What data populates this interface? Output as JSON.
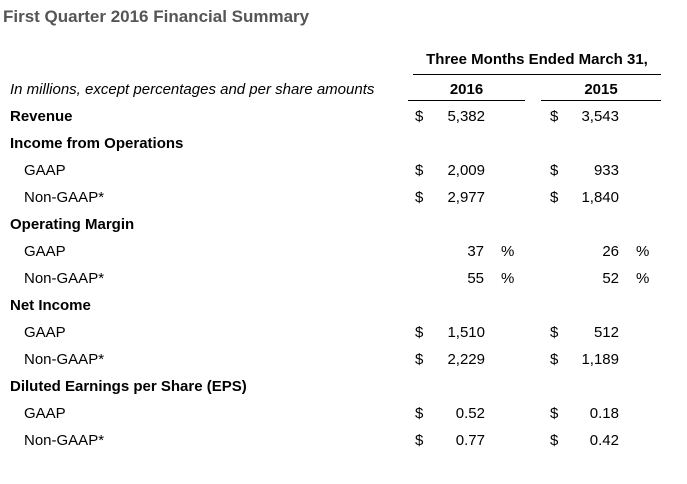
{
  "title": "First Quarter 2016 Financial Summary",
  "period_header": "Three Months Ended March 31,",
  "units_note": "In millions, except percentages and per share amounts",
  "years": [
    "2016",
    "2015"
  ],
  "rows": [
    {
      "label": "Revenue",
      "type": "section",
      "cur": [
        "$",
        "$"
      ],
      "values": [
        "5,382",
        "3,543"
      ]
    },
    {
      "label": "Income from Operations",
      "type": "section"
    },
    {
      "label": "GAAP",
      "type": "sub",
      "cur": [
        "$",
        "$"
      ],
      "values": [
        "2,009",
        "933"
      ]
    },
    {
      "label": "Non-GAAP*",
      "type": "sub",
      "cur": [
        "$",
        "$"
      ],
      "values": [
        "2,977",
        "1,840"
      ]
    },
    {
      "label": "Operating Margin",
      "type": "section"
    },
    {
      "label": "GAAP",
      "type": "sub",
      "pct": [
        "%",
        "%"
      ],
      "values": [
        "37",
        "26"
      ]
    },
    {
      "label": "Non-GAAP*",
      "type": "sub",
      "pct": [
        "%",
        "%"
      ],
      "values": [
        "55",
        "52"
      ]
    },
    {
      "label": "Net Income",
      "type": "section"
    },
    {
      "label": "GAAP",
      "type": "sub",
      "cur": [
        "$",
        "$"
      ],
      "values": [
        "1,510",
        "512"
      ]
    },
    {
      "label": "Non-GAAP*",
      "type": "sub",
      "cur": [
        "$",
        "$"
      ],
      "values": [
        "2,229",
        "1,189"
      ]
    },
    {
      "label": "Diluted Earnings per Share (EPS)",
      "type": "section"
    },
    {
      "label": "GAAP",
      "type": "sub",
      "cur": [
        "$",
        "$"
      ],
      "values": [
        "0.52",
        "0.18"
      ]
    },
    {
      "label": "Non-GAAP*",
      "type": "sub",
      "cur": [
        "$",
        "$"
      ],
      "values": [
        "0.77",
        "0.42"
      ]
    }
  ]
}
